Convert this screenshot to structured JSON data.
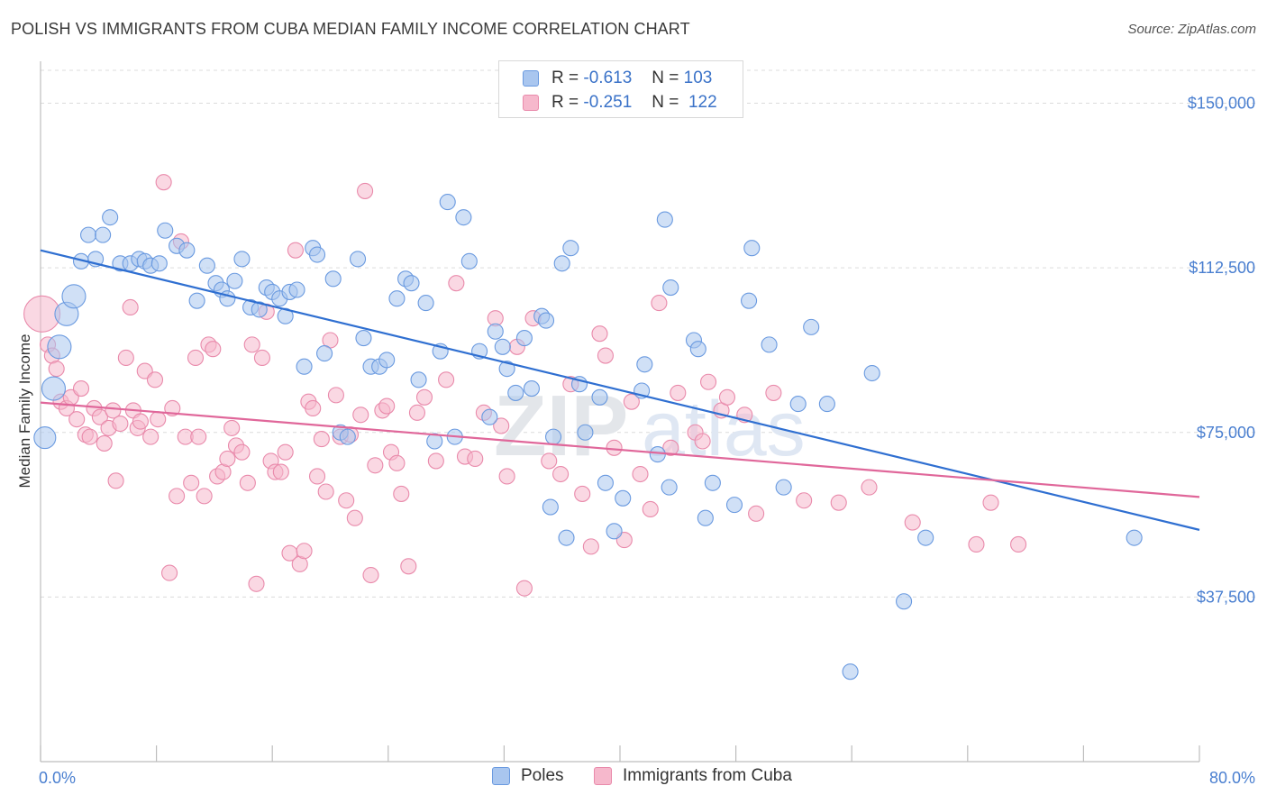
{
  "header": {
    "title": "POLISH VS IMMIGRANTS FROM CUBA MEDIAN FAMILY INCOME CORRELATION CHART",
    "source": "Source: ZipAtlas.com"
  },
  "legend": {
    "rows": [
      {
        "r_label": "R =",
        "r_value": "-0.613",
        "n_label": "N =",
        "n_value": "103"
      },
      {
        "r_label": "R =",
        "r_value": "-0.251",
        "n_label": "N =",
        "n_value": "122"
      }
    ]
  },
  "bottom_legend": {
    "poles": "Poles",
    "cuba": "Immigrants from Cuba"
  },
  "colors": {
    "poles_fill": "#a9c6ef",
    "poles_stroke": "#6a9ae0",
    "poles_line": "#2f6fd1",
    "cuba_fill": "#f6b8cc",
    "cuba_stroke": "#e98aab",
    "cuba_line": "#e0679a",
    "axis_label": "#4a7fd0",
    "grid": "#dcdcdc"
  },
  "chart_data": {
    "type": "scatter",
    "title": "POLISH VS IMMIGRANTS FROM CUBA MEDIAN FAMILY INCOME CORRELATION CHART",
    "xlabel": "",
    "ylabel": "Median Family Income",
    "xlim": [
      0,
      80
    ],
    "ylim": [
      0,
      157500
    ],
    "x_tick_labels": [
      "0.0%",
      "80.0%"
    ],
    "y_ticks": [
      37500,
      75000,
      112500,
      150000
    ],
    "y_tick_labels": [
      "$37,500",
      "$75,000",
      "$112,500",
      "$150,000"
    ],
    "grid": "horizontal dashed",
    "legend_position": "top-center",
    "watermark": "ZIPatlas",
    "series": [
      {
        "name": "Poles",
        "trend": {
          "x": [
            0,
            80
          ],
          "y": [
            116500,
            52800
          ]
        },
        "points": [
          [
            0.3,
            73800,
            12
          ],
          [
            0.9,
            85000,
            13
          ],
          [
            1.3,
            94500,
            13
          ],
          [
            1.8,
            102000,
            13
          ],
          [
            2.3,
            106000,
            13
          ],
          [
            2.8,
            114000,
            11
          ],
          [
            3.3,
            120000,
            11
          ],
          [
            3.8,
            114500,
            10
          ],
          [
            4.3,
            120000,
            10
          ],
          [
            4.8,
            124000,
            10
          ],
          [
            5.5,
            113500,
            10
          ],
          [
            6.2,
            113500,
            10
          ],
          [
            6.8,
            114500,
            10
          ],
          [
            7.2,
            114000,
            10
          ],
          [
            7.6,
            113000,
            10
          ],
          [
            8.2,
            113500,
            10
          ],
          [
            8.6,
            121000,
            10
          ],
          [
            9.4,
            117500,
            10
          ],
          [
            10.1,
            116500,
            10
          ],
          [
            10.8,
            105000,
            10
          ],
          [
            11.5,
            113000,
            10
          ],
          [
            12.1,
            109000,
            10
          ],
          [
            12.5,
            107500,
            10
          ],
          [
            12.9,
            105500,
            10
          ],
          [
            13.4,
            109500,
            10
          ],
          [
            13.9,
            114500,
            10
          ],
          [
            14.5,
            103500,
            10
          ],
          [
            15.1,
            103000,
            10
          ],
          [
            15.6,
            108000,
            10
          ],
          [
            16.0,
            107000,
            10
          ],
          [
            16.5,
            105500,
            10
          ],
          [
            16.9,
            101500,
            10
          ],
          [
            17.2,
            107000,
            10
          ],
          [
            17.7,
            107500,
            10
          ],
          [
            18.2,
            90000,
            10
          ],
          [
            18.8,
            117000,
            10
          ],
          [
            19.1,
            115500,
            10
          ],
          [
            19.6,
            93000,
            10
          ],
          [
            20.2,
            110000,
            10
          ],
          [
            20.7,
            75000,
            10
          ],
          [
            21.2,
            74000,
            10
          ],
          [
            21.9,
            114500,
            10
          ],
          [
            22.3,
            96500,
            10
          ],
          [
            22.8,
            90000,
            10
          ],
          [
            23.4,
            90000,
            10
          ],
          [
            23.9,
            91500,
            10
          ],
          [
            24.6,
            105500,
            10
          ],
          [
            25.2,
            110000,
            10
          ],
          [
            25.6,
            109000,
            10
          ],
          [
            26.1,
            87000,
            10
          ],
          [
            26.6,
            104500,
            10
          ],
          [
            27.2,
            73000,
            10
          ],
          [
            27.6,
            93500,
            10
          ],
          [
            28.1,
            127500,
            10
          ],
          [
            28.6,
            74000,
            10
          ],
          [
            29.2,
            124000,
            10
          ],
          [
            29.6,
            114000,
            10
          ],
          [
            30.3,
            93500,
            10
          ],
          [
            31.0,
            78500,
            10
          ],
          [
            31.4,
            98000,
            10
          ],
          [
            31.9,
            94500,
            10
          ],
          [
            32.2,
            89500,
            10
          ],
          [
            32.8,
            84000,
            10
          ],
          [
            33.4,
            96500,
            10
          ],
          [
            33.9,
            85000,
            10
          ],
          [
            34.6,
            101500,
            10
          ],
          [
            34.9,
            100500,
            10
          ],
          [
            35.4,
            74000,
            10
          ],
          [
            35.2,
            58000,
            10
          ],
          [
            36.0,
            113500,
            10
          ],
          [
            36.6,
            117000,
            10
          ],
          [
            36.3,
            51000,
            10
          ],
          [
            37.2,
            86000,
            10
          ],
          [
            37.6,
            75000,
            10
          ],
          [
            38.6,
            83000,
            10
          ],
          [
            39.0,
            63500,
            10
          ],
          [
            39.6,
            52500,
            10
          ],
          [
            40.2,
            60000,
            10
          ],
          [
            41.5,
            84500,
            10
          ],
          [
            41.7,
            90500,
            10
          ],
          [
            42.6,
            70000,
            10
          ],
          [
            43.1,
            123500,
            10
          ],
          [
            43.5,
            108000,
            10
          ],
          [
            43.4,
            62500,
            10
          ],
          [
            45.1,
            96000,
            10
          ],
          [
            45.4,
            94000,
            10
          ],
          [
            45.9,
            55500,
            10
          ],
          [
            46.4,
            63500,
            10
          ],
          [
            47.9,
            58500,
            10
          ],
          [
            48.9,
            105000,
            10
          ],
          [
            49.1,
            117000,
            10
          ],
          [
            50.3,
            95000,
            10
          ],
          [
            51.3,
            62500,
            10
          ],
          [
            52.3,
            81500,
            10
          ],
          [
            53.2,
            99000,
            10
          ],
          [
            54.3,
            81500,
            10
          ],
          [
            55.9,
            20500,
            10
          ],
          [
            57.4,
            88500,
            10
          ],
          [
            59.6,
            36500,
            10
          ],
          [
            61.1,
            51000,
            10
          ],
          [
            75.5,
            51000,
            10
          ]
        ]
      },
      {
        "name": "Immigrants from Cuba",
        "trend": {
          "x": [
            0,
            80
          ],
          "y": [
            81800,
            60300
          ]
        },
        "points": [
          [
            0.1,
            102000,
            20
          ],
          [
            0.5,
            95000,
            10
          ],
          [
            0.8,
            92500,
            10
          ],
          [
            1.1,
            89500,
            10
          ],
          [
            1.4,
            82000,
            10
          ],
          [
            1.8,
            80500,
            10
          ],
          [
            2.1,
            83000,
            10
          ],
          [
            2.5,
            78000,
            10
          ],
          [
            2.8,
            85000,
            10
          ],
          [
            3.1,
            74500,
            10
          ],
          [
            3.4,
            74000,
            10
          ],
          [
            3.7,
            80500,
            10
          ],
          [
            4.1,
            78500,
            10
          ],
          [
            4.4,
            72500,
            10
          ],
          [
            4.7,
            76000,
            10
          ],
          [
            5.0,
            80000,
            10
          ],
          [
            5.2,
            64000,
            10
          ],
          [
            5.5,
            77000,
            10
          ],
          [
            5.9,
            92000,
            10
          ],
          [
            6.2,
            103500,
            10
          ],
          [
            6.4,
            80000,
            10
          ],
          [
            6.7,
            76000,
            10
          ],
          [
            6.9,
            77500,
            10
          ],
          [
            7.2,
            89000,
            10
          ],
          [
            7.6,
            74000,
            10
          ],
          [
            7.9,
            87000,
            10
          ],
          [
            8.1,
            78000,
            10
          ],
          [
            8.5,
            132000,
            10
          ],
          [
            8.9,
            43000,
            10
          ],
          [
            9.1,
            80500,
            10
          ],
          [
            9.4,
            60500,
            10
          ],
          [
            9.7,
            118500,
            10
          ],
          [
            10.0,
            74000,
            10
          ],
          [
            10.4,
            63500,
            10
          ],
          [
            10.7,
            92000,
            10
          ],
          [
            10.9,
            74000,
            10
          ],
          [
            11.3,
            60500,
            10
          ],
          [
            11.6,
            95000,
            10
          ],
          [
            11.9,
            94000,
            10
          ],
          [
            12.2,
            65000,
            10
          ],
          [
            12.6,
            66000,
            10
          ],
          [
            12.9,
            69000,
            10
          ],
          [
            13.2,
            76000,
            10
          ],
          [
            13.5,
            72000,
            10
          ],
          [
            13.9,
            70500,
            10
          ],
          [
            14.3,
            63500,
            10
          ],
          [
            14.6,
            95000,
            10
          ],
          [
            14.9,
            40500,
            10
          ],
          [
            15.3,
            92000,
            10
          ],
          [
            15.6,
            102500,
            10
          ],
          [
            15.9,
            68500,
            10
          ],
          [
            16.2,
            66000,
            10
          ],
          [
            16.6,
            66000,
            10
          ],
          [
            16.9,
            70500,
            10
          ],
          [
            17.2,
            47500,
            10
          ],
          [
            17.6,
            116500,
            10
          ],
          [
            17.9,
            45000,
            10
          ],
          [
            18.2,
            48000,
            10
          ],
          [
            18.5,
            82000,
            10
          ],
          [
            18.8,
            80500,
            10
          ],
          [
            19.1,
            65000,
            10
          ],
          [
            19.4,
            73500,
            10
          ],
          [
            19.7,
            61500,
            10
          ],
          [
            20.0,
            96000,
            10
          ],
          [
            20.4,
            83500,
            10
          ],
          [
            20.7,
            74000,
            10
          ],
          [
            21.1,
            59500,
            10
          ],
          [
            21.4,
            74500,
            10
          ],
          [
            21.7,
            55500,
            10
          ],
          [
            22.1,
            79000,
            10
          ],
          [
            22.4,
            130000,
            10
          ],
          [
            22.8,
            42500,
            10
          ],
          [
            23.1,
            67500,
            10
          ],
          [
            23.6,
            80000,
            10
          ],
          [
            23.9,
            81000,
            10
          ],
          [
            24.2,
            70500,
            10
          ],
          [
            24.6,
            68000,
            10
          ],
          [
            24.9,
            61000,
            10
          ],
          [
            25.4,
            44500,
            10
          ],
          [
            26.0,
            79500,
            10
          ],
          [
            26.5,
            83000,
            10
          ],
          [
            27.3,
            68500,
            10
          ],
          [
            28.0,
            87000,
            10
          ],
          [
            28.7,
            109000,
            10
          ],
          [
            29.3,
            69500,
            10
          ],
          [
            30.0,
            69000,
            10
          ],
          [
            30.6,
            79500,
            10
          ],
          [
            31.4,
            101000,
            10
          ],
          [
            31.8,
            76500,
            10
          ],
          [
            32.2,
            65000,
            10
          ],
          [
            32.9,
            94500,
            10
          ],
          [
            33.4,
            39500,
            10
          ],
          [
            34.0,
            101000,
            10
          ],
          [
            35.1,
            68500,
            10
          ],
          [
            35.9,
            65500,
            10
          ],
          [
            36.6,
            86000,
            10
          ],
          [
            37.4,
            61000,
            10
          ],
          [
            38.0,
            49000,
            10
          ],
          [
            38.6,
            97500,
            10
          ],
          [
            39.0,
            92500,
            10
          ],
          [
            39.6,
            71500,
            10
          ],
          [
            40.3,
            50500,
            10
          ],
          [
            40.8,
            82000,
            10
          ],
          [
            41.4,
            65500,
            10
          ],
          [
            42.1,
            57500,
            10
          ],
          [
            42.7,
            104500,
            10
          ],
          [
            43.5,
            71500,
            10
          ],
          [
            44.0,
            84000,
            10
          ],
          [
            45.2,
            75000,
            10
          ],
          [
            45.7,
            73000,
            10
          ],
          [
            46.1,
            86500,
            10
          ],
          [
            47.0,
            80000,
            10
          ],
          [
            47.4,
            83000,
            10
          ],
          [
            48.6,
            79000,
            10
          ],
          [
            49.4,
            56500,
            10
          ],
          [
            50.6,
            84000,
            10
          ],
          [
            52.7,
            59500,
            10
          ],
          [
            55.1,
            59000,
            10
          ],
          [
            57.2,
            62500,
            10
          ],
          [
            60.2,
            54500,
            10
          ],
          [
            64.6,
            49500,
            10
          ],
          [
            65.6,
            59000,
            10
          ],
          [
            67.5,
            49500,
            10
          ]
        ]
      }
    ]
  }
}
